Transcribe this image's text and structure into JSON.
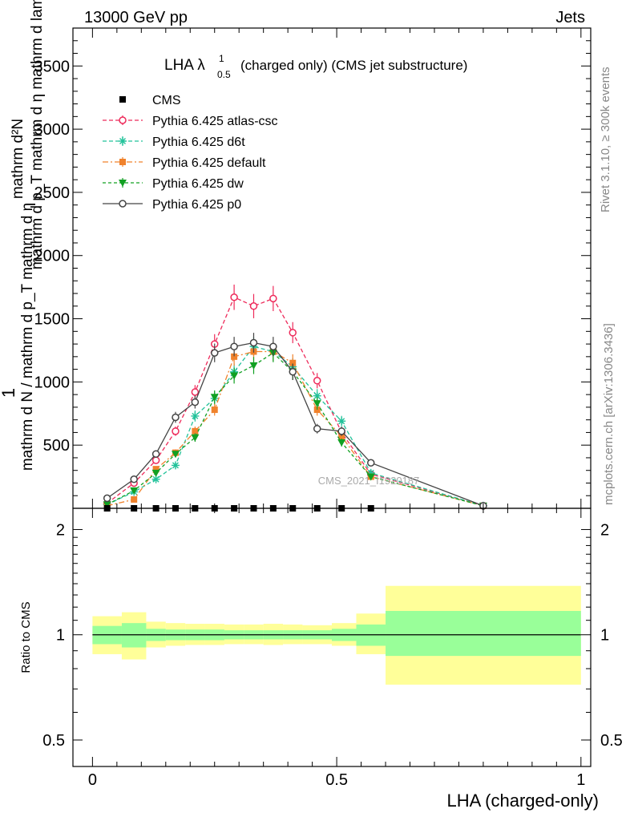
{
  "header": {
    "left": "13000 GeV pp",
    "right": "Jets"
  },
  "side_labels": {
    "rivet": "Rivet 3.1.10, ≥ 300k events",
    "mcplots": "mcplots.cern.ch [arXiv:1306.3436]"
  },
  "watermark": "CMS_2021_I1920187",
  "main_title": {
    "prefix": "LHA λ",
    "sup": "1",
    "sub": "0.5",
    "suffix": "(charged only) (CMS jet substructure)"
  },
  "ylabel_main": {
    "line1": "1",
    "line2": "mathrm d N / mathrm d p_T mathrm d η",
    "numerator": "mathrm d²N",
    "denominator": "mathrm d p_T mathrm d η mathrm d lambda"
  },
  "xlabel": "LHA (charged-only)",
  "ratio_ylabel": "Ratio to CMS",
  "colors": {
    "atlas": "#ee2a5a",
    "d6t": "#22c29a",
    "default": "#f0822c",
    "dw": "#11a022",
    "p0": "#444444",
    "band_inner": "#99ff99",
    "band_outer": "#ffff99"
  },
  "chart_data": [
    {
      "type": "line",
      "xlim": [
        -0.04,
        1.02
      ],
      "ylim": [
        0,
        3800
      ],
      "x_ticks": [
        0,
        0.5,
        1
      ],
      "y_ticks": [
        500,
        1000,
        1500,
        2000,
        2500,
        3000,
        3500
      ],
      "y_tick_labels": [
        "500",
        "1000",
        "1500",
        "2000",
        "2500",
        "3000",
        "3500"
      ],
      "legend_position": "top-left",
      "data_points": {
        "name": "CMS",
        "x": [
          0.03,
          0.085,
          0.13,
          0.17,
          0.21,
          0.25,
          0.29,
          0.33,
          0.37,
          0.41,
          0.46,
          0.51,
          0.57
        ],
        "y": [
          0,
          0,
          0,
          0,
          0,
          0,
          0,
          0,
          0,
          0,
          0,
          0,
          0
        ]
      },
      "series": [
        {
          "name": "Pythia 6.425 atlas-csc",
          "key": "atlas",
          "x": [
            0.03,
            0.085,
            0.13,
            0.17,
            0.21,
            0.25,
            0.29,
            0.33,
            0.37,
            0.41,
            0.46,
            0.51,
            0.57,
            0.8
          ],
          "y": [
            40,
            200,
            380,
            610,
            920,
            1300,
            1670,
            1600,
            1660,
            1390,
            1010,
            600,
            270,
            20
          ]
        },
        {
          "name": "Pythia 6.425 d6t",
          "key": "d6t",
          "x": [
            0.03,
            0.085,
            0.13,
            0.17,
            0.21,
            0.25,
            0.29,
            0.33,
            0.37,
            0.41,
            0.46,
            0.51,
            0.57,
            0.8
          ],
          "y": [
            30,
            130,
            230,
            340,
            730,
            870,
            1080,
            1280,
            1240,
            1120,
            890,
            690,
            280,
            20
          ]
        },
        {
          "name": "Pythia 6.425 default",
          "key": "default",
          "x": [
            0.03,
            0.085,
            0.13,
            0.17,
            0.21,
            0.25,
            0.29,
            0.33,
            0.37,
            0.41,
            0.46,
            0.51,
            0.57,
            0.8
          ],
          "y": [
            20,
            70,
            310,
            440,
            610,
            780,
            1200,
            1240,
            1240,
            1150,
            780,
            570,
            250,
            20
          ]
        },
        {
          "name": "Pythia 6.425 dw",
          "key": "dw",
          "x": [
            0.03,
            0.085,
            0.13,
            0.17,
            0.21,
            0.25,
            0.29,
            0.33,
            0.37,
            0.41,
            0.46,
            0.51,
            0.57,
            0.8
          ],
          "y": [
            30,
            140,
            280,
            430,
            560,
            880,
            1050,
            1130,
            1230,
            1080,
            830,
            520,
            250,
            20
          ]
        },
        {
          "name": "Pythia 6.425 p0",
          "key": "p0",
          "x": [
            0.03,
            0.085,
            0.13,
            0.17,
            0.21,
            0.25,
            0.29,
            0.33,
            0.37,
            0.41,
            0.46,
            0.51,
            0.57,
            0.8
          ],
          "y": [
            80,
            230,
            430,
            720,
            840,
            1230,
            1280,
            1310,
            1280,
            1080,
            630,
            610,
            360,
            20
          ]
        }
      ]
    },
    {
      "type": "area",
      "ylabel": "Ratio to CMS",
      "xlim": [
        -0.04,
        1.02
      ],
      "ylim": [
        0.42,
        2.3
      ],
      "log_y": true,
      "x_ticks": [
        0,
        0.5,
        1
      ],
      "x_tick_labels": [
        "0",
        "0.5",
        "1"
      ],
      "y_ticks": [
        0.5,
        1,
        2
      ],
      "y_tick_labels": [
        "0.5",
        "1",
        "2"
      ],
      "reference_line": 1,
      "bands": [
        {
          "x0": 0.0,
          "x1": 0.06,
          "inner": [
            0.94,
            1.06
          ],
          "outer": [
            0.88,
            1.13
          ]
        },
        {
          "x0": 0.06,
          "x1": 0.11,
          "inner": [
            0.92,
            1.08
          ],
          "outer": [
            0.85,
            1.16
          ]
        },
        {
          "x0": 0.11,
          "x1": 0.15,
          "inner": [
            0.96,
            1.04
          ],
          "outer": [
            0.92,
            1.09
          ]
        },
        {
          "x0": 0.15,
          "x1": 0.19,
          "inner": [
            0.965,
            1.035
          ],
          "outer": [
            0.93,
            1.08
          ]
        },
        {
          "x0": 0.19,
          "x1": 0.23,
          "inner": [
            0.965,
            1.035
          ],
          "outer": [
            0.935,
            1.075
          ]
        },
        {
          "x0": 0.23,
          "x1": 0.27,
          "inner": [
            0.965,
            1.035
          ],
          "outer": [
            0.935,
            1.075
          ]
        },
        {
          "x0": 0.27,
          "x1": 0.31,
          "inner": [
            0.97,
            1.03
          ],
          "outer": [
            0.94,
            1.07
          ]
        },
        {
          "x0": 0.31,
          "x1": 0.35,
          "inner": [
            0.97,
            1.03
          ],
          "outer": [
            0.94,
            1.07
          ]
        },
        {
          "x0": 0.35,
          "x1": 0.39,
          "inner": [
            0.97,
            1.03
          ],
          "outer": [
            0.935,
            1.075
          ]
        },
        {
          "x0": 0.39,
          "x1": 0.43,
          "inner": [
            0.97,
            1.03
          ],
          "outer": [
            0.94,
            1.07
          ]
        },
        {
          "x0": 0.43,
          "x1": 0.49,
          "inner": [
            0.97,
            1.03
          ],
          "outer": [
            0.94,
            1.065
          ]
        },
        {
          "x0": 0.49,
          "x1": 0.54,
          "inner": [
            0.96,
            1.04
          ],
          "outer": [
            0.93,
            1.08
          ]
        },
        {
          "x0": 0.54,
          "x1": 0.6,
          "inner": [
            0.93,
            1.07
          ],
          "outer": [
            0.88,
            1.15
          ]
        },
        {
          "x0": 0.6,
          "x1": 1.0,
          "inner": [
            0.87,
            1.17
          ],
          "outer": [
            0.72,
            1.38
          ]
        }
      ]
    }
  ]
}
